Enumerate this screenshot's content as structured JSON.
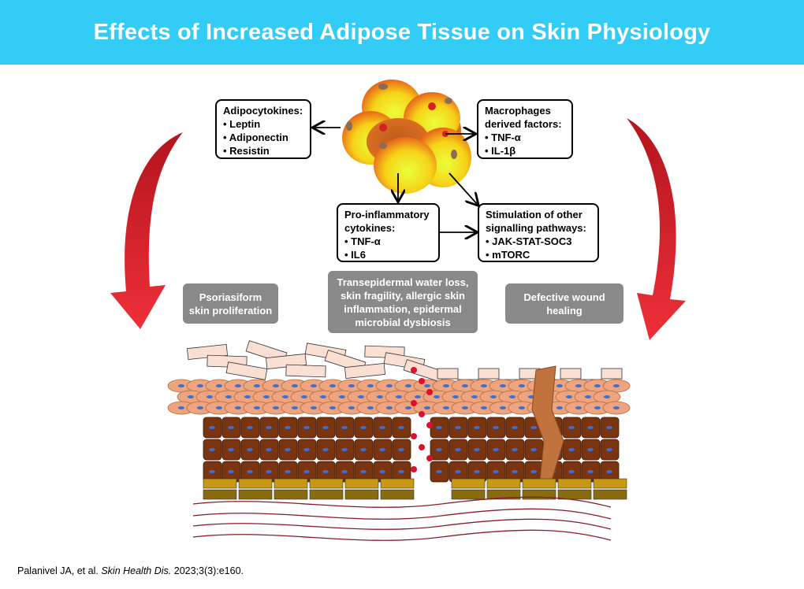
{
  "title": "Effects of Increased Adipose Tissue on Skin Physiology",
  "boxes": {
    "adipocytokines": {
      "heading": "Adipocytokines:",
      "items": [
        "Leptin",
        "Adiponectin",
        "Resistin"
      ]
    },
    "macrophages": {
      "heading": "Macrophages derived factors:",
      "items": [
        "TNF-α",
        "IL-1β"
      ]
    },
    "pro_inflammatory": {
      "heading": "Pro-inflammatory cytokines:",
      "items": [
        "TNF-α",
        "IL6"
      ]
    },
    "signalling": {
      "heading": "Stimulation of other signalling pathways:",
      "items": [
        "JAK-STAT-SOC3",
        "mTORC"
      ]
    }
  },
  "effects": [
    "Psoriasiform skin proliferation",
    "Transepidermal water loss, skin fragility, allergic skin inflammation, epidermal microbial dysbiosis",
    "Defective wound healing"
  ],
  "citation": {
    "authors": "Palanivel JA, et al.",
    "journal": "Skin Health Dis.",
    "details": "2023;3(3):e160."
  },
  "colors": {
    "header": "#33ccf6",
    "effect_box": "#898989",
    "curved_arrow": "#d9202a"
  }
}
